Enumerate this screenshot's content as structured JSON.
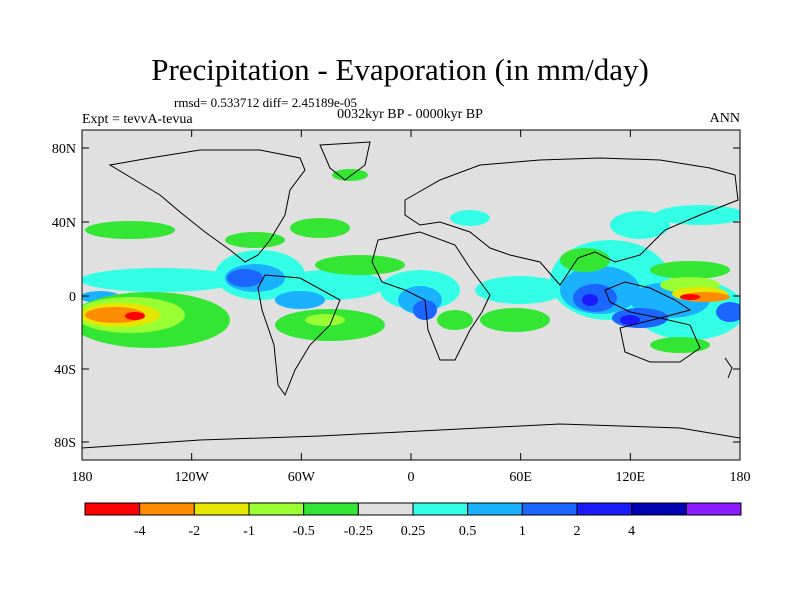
{
  "title": "Precipitation - Evaporation (in mm/day)",
  "stats": "rmsd= 0.533712 diff= 2.45189e-05",
  "period": "0032kyr BP - 0000kyr BP",
  "experiment": "Expt = tevvA-tevua",
  "season": "ANN",
  "map": {
    "background": "#e0e0e0",
    "lat_ticks": [
      "80N",
      "40N",
      "0",
      "40S",
      "80S"
    ],
    "lon_ticks": [
      "180",
      "120W",
      "60W",
      "0",
      "60E",
      "120E",
      "180"
    ]
  },
  "colorbar": {
    "colors": [
      "#ff0000",
      "#ff8c00",
      "#e6e600",
      "#99ff33",
      "#33e633",
      "#e0e0e0",
      "#33ffe6",
      "#1ab2ff",
      "#1a66ff",
      "#1a1aff",
      "#0000b3",
      "#8c1aff"
    ],
    "labels": [
      "-4",
      "-2",
      "-1",
      "-0.5",
      "-0.25",
      "0.25",
      "0.5",
      "1",
      "2",
      "4"
    ]
  }
}
